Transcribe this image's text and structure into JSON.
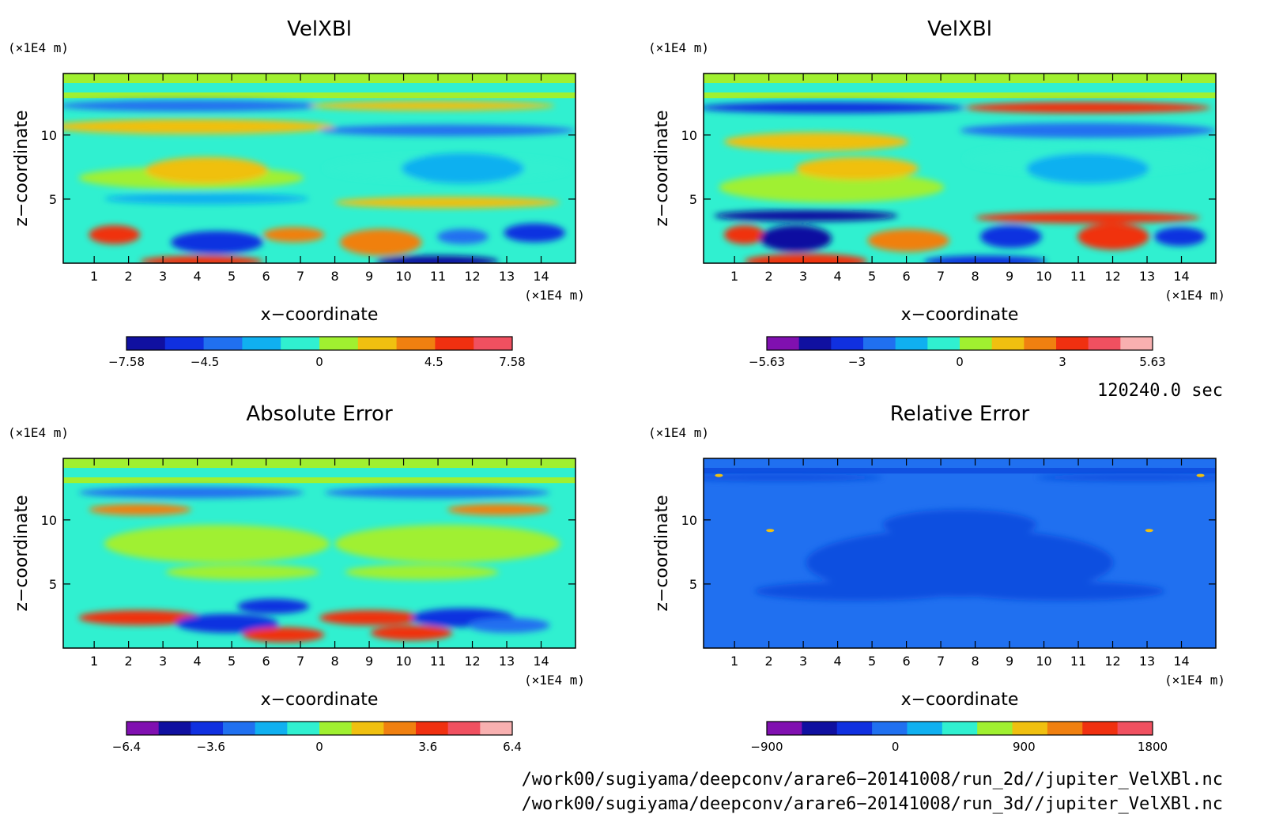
{
  "chart_data": [
    {
      "type": "heatmap",
      "title": "VelXBl",
      "xlabel": "x−coordinate",
      "ylabel": "z−coordinate",
      "x_unit": "(×1E4 m)",
      "y_unit": "(×1E4 m)",
      "x_ticks": [
        "1",
        "2",
        "3",
        "4",
        "5",
        "6",
        "7",
        "8",
        "9",
        "10",
        "11",
        "12",
        "13",
        "14"
      ],
      "y_ticks": [
        "5",
        "10"
      ],
      "xlim": [
        0.1,
        15.0
      ],
      "ylim": [
        0.0,
        14.8
      ],
      "colorbar": {
        "min": -7.58,
        "max": 7.58,
        "labels": [
          "−7.58",
          "−4.5",
          "0",
          "4.5",
          "7.58"
        ],
        "colors": [
          "#1010a0",
          "#1030e0",
          "#2070f0",
          "#10b0f0",
          "#30f0d0",
          "#a0f030",
          "#f0c010",
          "#f08010",
          "#f03010",
          "#f05060"
        ]
      }
    },
    {
      "type": "heatmap",
      "title": "VelXBl",
      "xlabel": "x−coordinate",
      "ylabel": "z−coordinate",
      "x_unit": "(×1E4 m)",
      "y_unit": "(×1E4 m)",
      "x_ticks": [
        "1",
        "2",
        "3",
        "4",
        "5",
        "6",
        "7",
        "8",
        "9",
        "10",
        "11",
        "12",
        "13",
        "14"
      ],
      "y_ticks": [
        "5",
        "10"
      ],
      "xlim": [
        0.1,
        15.0
      ],
      "ylim": [
        0.0,
        14.8
      ],
      "colorbar": {
        "min": -5.63,
        "max": 5.63,
        "labels": [
          "−5.63",
          "−3",
          "0",
          "3",
          "5.63"
        ],
        "colors": [
          "#8010b0",
          "#1010a0",
          "#1030e0",
          "#2070f0",
          "#10b0f0",
          "#30f0d0",
          "#a0f030",
          "#f0c010",
          "#f08010",
          "#f03010",
          "#f05060",
          "#f8b0b0"
        ]
      }
    },
    {
      "type": "heatmap",
      "title": "Absolute Error",
      "xlabel": "x−coordinate",
      "ylabel": "z−coordinate",
      "x_unit": "(×1E4 m)",
      "y_unit": "(×1E4 m)",
      "x_ticks": [
        "1",
        "2",
        "3",
        "4",
        "5",
        "6",
        "7",
        "8",
        "9",
        "10",
        "11",
        "12",
        "13",
        "14"
      ],
      "y_ticks": [
        "5",
        "10"
      ],
      "xlim": [
        0.1,
        15.0
      ],
      "ylim": [
        0.0,
        14.8
      ],
      "colorbar": {
        "min": -6.4,
        "max": 6.4,
        "labels": [
          "−6.4",
          "−3.6",
          "0",
          "3.6",
          "6.4"
        ],
        "colors": [
          "#8010b0",
          "#1010a0",
          "#1030e0",
          "#2070f0",
          "#10b0f0",
          "#30f0d0",
          "#a0f030",
          "#f0c010",
          "#f08010",
          "#f03010",
          "#f05060",
          "#f8b0b0"
        ]
      }
    },
    {
      "type": "heatmap",
      "title": "Relative Error",
      "xlabel": "x−coordinate",
      "ylabel": "z−coordinate",
      "x_unit": "(×1E4 m)",
      "y_unit": "(×1E4 m)",
      "x_ticks": [
        "1",
        "2",
        "3",
        "4",
        "5",
        "6",
        "7",
        "8",
        "9",
        "10",
        "11",
        "12",
        "13",
        "14"
      ],
      "y_ticks": [
        "5",
        "10"
      ],
      "xlim": [
        0.1,
        15.0
      ],
      "ylim": [
        0.0,
        14.8
      ],
      "colorbar": {
        "min": -900,
        "max": 1800,
        "labels": [
          "−900",
          "0",
          "900",
          "1800"
        ],
        "colors": [
          "#8010b0",
          "#1010a0",
          "#1030e0",
          "#2070f0",
          "#10b0f0",
          "#30f0d0",
          "#a0f030",
          "#f0c010",
          "#f08010",
          "#f03010",
          "#f05060"
        ]
      }
    }
  ],
  "footer": {
    "time": "120240.0 sec",
    "file_2d": "/work00/sugiyama/deepconv/arare6−20141008/run_2d//jupiter_VelXBl.nc",
    "file_3d": "/work00/sugiyama/deepconv/arare6−20141008/run_3d//jupiter_VelXBl.nc"
  }
}
